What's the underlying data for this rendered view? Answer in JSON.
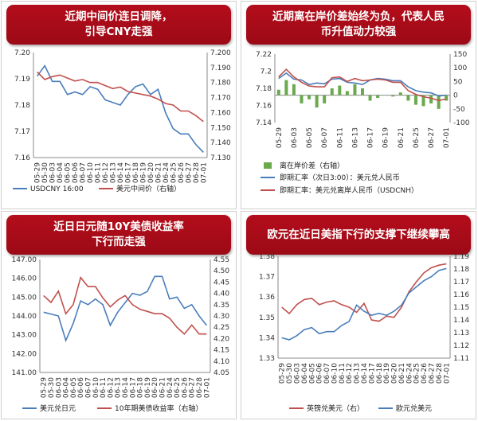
{
  "panels": [
    {
      "title": [
        "近期中间价连日调降，",
        "引导CNY走强"
      ],
      "chart_data": {
        "type": "line",
        "categories": [
          "05-29",
          "05-30",
          "06-03",
          "06-04",
          "06-05",
          "06-06",
          "06-07",
          "06-10",
          "06-11",
          "06-12",
          "06-13",
          "06-14",
          "06-17",
          "06-18",
          "06-19",
          "06-20",
          "06-21",
          "06-24",
          "06-25",
          "06-26",
          "06-27",
          "06-28",
          "07-01"
        ],
        "left_axis": {
          "min": 7.16,
          "max": 7.2,
          "ticks": [
            "7.16",
            "7.17",
            "7.18",
            "7.19",
            "7.20"
          ],
          "extra_ticks": [
            "7.16"
          ]
        },
        "left_ticks": [
          "7.20",
          "7.19",
          "7.18",
          "7.17",
          "7.16"
        ],
        "right_ticks": [
          "7.200",
          "7.190",
          "7.180",
          "7.170",
          "7.160",
          "7.150",
          "7.140",
          "7.130"
        ],
        "ylim_left": [
          7.16,
          7.2
        ],
        "ylim_right": [
          7.13,
          7.2
        ],
        "series": [
          {
            "name": "USDCNY 16:00",
            "axis": "left",
            "color": "#4a7ebb",
            "values": [
              7.191,
              7.195,
              7.189,
              7.189,
              7.184,
              7.185,
              7.184,
              7.187,
              7.186,
              7.182,
              7.181,
              7.18,
              7.184,
              7.187,
              7.188,
              7.184,
              7.186,
              7.177,
              7.171,
              7.169,
              7.169,
              7.165,
              7.162
            ]
          },
          {
            "name": "美元中间价（右轴）",
            "axis": "right",
            "color": "#c0504d",
            "values": [
              7.187,
              7.182,
              7.184,
              7.185,
              7.183,
              7.181,
              7.182,
              7.18,
              7.18,
              7.178,
              7.176,
              7.177,
              7.174,
              7.173,
              7.172,
              7.171,
              7.169,
              7.166,
              7.165,
              7.161,
              7.161,
              7.158,
              7.154
            ]
          }
        ]
      }
    },
    {
      "title": [
        "近期离在岸价差始终为负，代表人民",
        "币升值动力较强"
      ],
      "chart_data": {
        "type": "bar-line",
        "categories": [
          "05-29",
          "05-30",
          "06-03",
          "06-04",
          "06-05",
          "06-06",
          "06-07",
          "06-10",
          "06-11",
          "06-12",
          "06-13",
          "06-14",
          "06-17",
          "06-18",
          "06-19",
          "06-20",
          "06-21",
          "06-24",
          "06-25",
          "06-26",
          "06-27",
          "06-28",
          "07-01"
        ],
        "left_ticks": [
          "7.22",
          "7.2",
          "7.18",
          "7.16",
          "7.14"
        ],
        "right_ticks": [
          "150",
          "100",
          "50",
          "0",
          "-50",
          "-100"
        ],
        "ylim_left": [
          7.13,
          7.22
        ],
        "ylim_right": [
          -100,
          150
        ],
        "series": [
          {
            "name": "离在岸价差（右轴）",
            "type": "bar",
            "axis": "right",
            "color": "#6aaa4c",
            "values": [
              20,
              55,
              40,
              -30,
              -15,
              -45,
              -30,
              25,
              35,
              15,
              40,
              25,
              -20,
              -10,
              0,
              -5,
              10,
              -20,
              -35,
              -40,
              -30,
              -50,
              -20
            ]
          },
          {
            "name": "即期汇率（次日3:00）：美元兑人民币",
            "type": "line",
            "axis": "left",
            "color": "#4a7ebb",
            "values": [
              7.188,
              7.195,
              7.187,
              7.186,
              7.18,
              7.182,
              7.181,
              7.187,
              7.188,
              7.183,
              7.182,
              7.18,
              7.186,
              7.188,
              7.187,
              7.185,
              7.185,
              7.177,
              7.172,
              7.17,
              7.169,
              7.165,
              7.166
            ]
          },
          {
            "name": "即期汇率：美元兑离岸人民币（USDCNH）",
            "type": "line",
            "axis": "left",
            "color": "#c0504d",
            "values": [
              7.19,
              7.2,
              7.19,
              7.183,
              7.178,
              7.177,
              7.177,
              7.189,
              7.19,
              7.184,
              7.188,
              7.185,
              7.186,
              7.187,
              7.186,
              7.183,
              7.183,
              7.172,
              7.167,
              7.164,
              7.162,
              7.159,
              7.161
            ]
          }
        ]
      }
    },
    {
      "title": [
        "近日日元随10Y美债收益率",
        "下行而走强"
      ],
      "chart_data": {
        "type": "line",
        "categories": [
          "05-29",
          "05-30",
          "06-03",
          "06-04",
          "06-05",
          "06-06",
          "06-07",
          "06-10",
          "06-11",
          "06-12",
          "06-13",
          "06-14",
          "06-17",
          "06-18",
          "06-19",
          "06-20",
          "06-21",
          "06-24",
          "06-25",
          "06-26",
          "06-27",
          "06-28",
          "07-01"
        ],
        "left_ticks": [
          "147.00",
          "146.00",
          "145.00",
          "144.00",
          "143.00",
          "142.00",
          "141.00"
        ],
        "right_ticks": [
          "4.55",
          "4.50",
          "4.45",
          "4.40",
          "4.35",
          "4.30",
          "4.25",
          "4.20",
          "4.15",
          "4.10",
          "4.05"
        ],
        "ylim_left": [
          141,
          147
        ],
        "ylim_right": [
          4.05,
          4.55
        ],
        "series": [
          {
            "name": "美元兑日元",
            "axis": "left",
            "color": "#4a7ebb",
            "values": [
              144.2,
              144.1,
              144.0,
              142.7,
              143.6,
              144.8,
              144.6,
              144.9,
              144.6,
              143.5,
              144.2,
              144.7,
              145.2,
              145.1,
              145.3,
              146.1,
              146.1,
              144.9,
              145.0,
              144.4,
              144.6,
              144.0,
              143.5
            ]
          },
          {
            "name": "10年期美债收益率（右轴）",
            "axis": "right",
            "color": "#c0504d",
            "values": [
              4.39,
              4.36,
              4.41,
              4.31,
              4.35,
              4.47,
              4.43,
              4.43,
              4.38,
              4.34,
              4.37,
              4.39,
              4.35,
              4.33,
              4.32,
              4.31,
              4.31,
              4.29,
              4.25,
              4.22,
              4.26,
              4.22,
              4.22
            ]
          }
        ]
      }
    },
    {
      "title": [
        "欧元在近日美指下行的支撑下继续攀高"
      ],
      "chart_data": {
        "type": "line",
        "categories": [
          "05-29",
          "05-30",
          "06-03",
          "06-04",
          "06-05",
          "06-06",
          "06-07",
          "06-10",
          "06-11",
          "06-12",
          "06-13",
          "06-14",
          "06-17",
          "06-18",
          "06-19",
          "06-20",
          "06-21",
          "06-24",
          "06-25",
          "06-26",
          "06-27",
          "06-28",
          "07-01"
        ],
        "left_ticks": [
          "1.38",
          "1.37",
          "1.36",
          "1.35",
          "1.34",
          "1.33"
        ],
        "right_ticks": [
          "1.19",
          "1.18",
          "1.17",
          "1.16",
          "1.15",
          "1.14",
          "1.13",
          "1.12",
          "1.11"
        ],
        "ylim_left": [
          1.33,
          1.38
        ],
        "ylim_right": [
          1.11,
          1.19
        ],
        "series": [
          {
            "name": "英镑兑美元（右）",
            "axis": "right",
            "color": "#c0504d",
            "values": [
              1.15,
              1.145,
              1.152,
              1.156,
              1.157,
              1.152,
              1.154,
              1.155,
              1.152,
              1.15,
              1.146,
              1.153,
              1.14,
              1.139,
              1.143,
              1.142,
              1.15,
              1.162,
              1.17,
              1.177,
              1.181,
              1.183,
              1.184
            ]
          },
          {
            "name": "欧元兑美元",
            "axis": "left",
            "color": "#4a7ebb",
            "values": [
              1.34,
              1.339,
              1.341,
              1.344,
              1.345,
              1.342,
              1.343,
              1.343,
              1.346,
              1.348,
              1.356,
              1.353,
              1.351,
              1.352,
              1.351,
              1.353,
              1.356,
              1.362,
              1.365,
              1.368,
              1.37,
              1.373,
              1.374
            ]
          }
        ]
      }
    }
  ],
  "legend": [
    [
      "USDCNY 16:00",
      "美元中间价（右轴）"
    ],
    [
      "离在岸价差（右轴）",
      "即期汇率（次日3:00）：美元兑人民币",
      "即期汇率：美元兑离岸人民币（USDCNH）"
    ],
    [
      "美元兑日元",
      "10年期美债收益率（右轴）"
    ],
    [
      "英镑兑美元（右）",
      "欧元兑美元"
    ]
  ]
}
